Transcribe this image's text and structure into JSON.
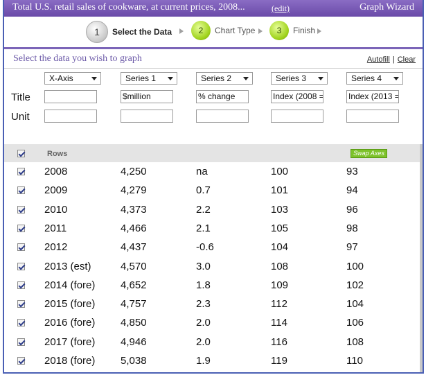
{
  "titlebar": {
    "title": "Total U.S. retail sales of cookware, at current prices, 2008...",
    "edit_label": "(edit)",
    "wizard_label": "Graph Wizard"
  },
  "steps": [
    {
      "number": "1",
      "label": "Select the Data"
    },
    {
      "number": "2",
      "label": "Chart Type"
    },
    {
      "number": "3",
      "label": "Finish"
    }
  ],
  "subhead": {
    "title": "Select the data you wish to graph",
    "autofill_label": "Autofill",
    "divider": "|",
    "clear_label": "Clear"
  },
  "selects": [
    "X-Axis",
    "Series 1",
    "Series 2",
    "Series 3",
    "Series 4"
  ],
  "labels": {
    "title": "Title",
    "unit": "Unit"
  },
  "title_values": [
    "",
    "$million",
    "% change",
    "Index (2008 =",
    "Index (2013 ="
  ],
  "unit_values": [
    "",
    "",
    "",
    "",
    ""
  ],
  "rows_header": {
    "label": "Rows",
    "swap_label": "Swap Axes"
  },
  "rows": [
    [
      "2008",
      "4,250",
      "na",
      "100",
      "93"
    ],
    [
      "2009",
      "4,279",
      "0.7",
      "101",
      "94"
    ],
    [
      "2010",
      "4,373",
      "2.2",
      "103",
      "96"
    ],
    [
      "2011",
      "4,466",
      "2.1",
      "105",
      "98"
    ],
    [
      "2012",
      "4,437",
      "-0.6",
      "104",
      "97"
    ],
    [
      "2013 (est)",
      "4,570",
      "3.0",
      "108",
      "100"
    ],
    [
      "2014 (fore)",
      "4,652",
      "1.8",
      "109",
      "102"
    ],
    [
      "2015 (fore)",
      "4,757",
      "2.3",
      "112",
      "104"
    ],
    [
      "2016 (fore)",
      "4,850",
      "2.0",
      "114",
      "106"
    ],
    [
      "2017 (fore)",
      "4,946",
      "2.0",
      "116",
      "108"
    ],
    [
      "2018 (fore)",
      "5,038",
      "1.9",
      "119",
      "110"
    ]
  ]
}
